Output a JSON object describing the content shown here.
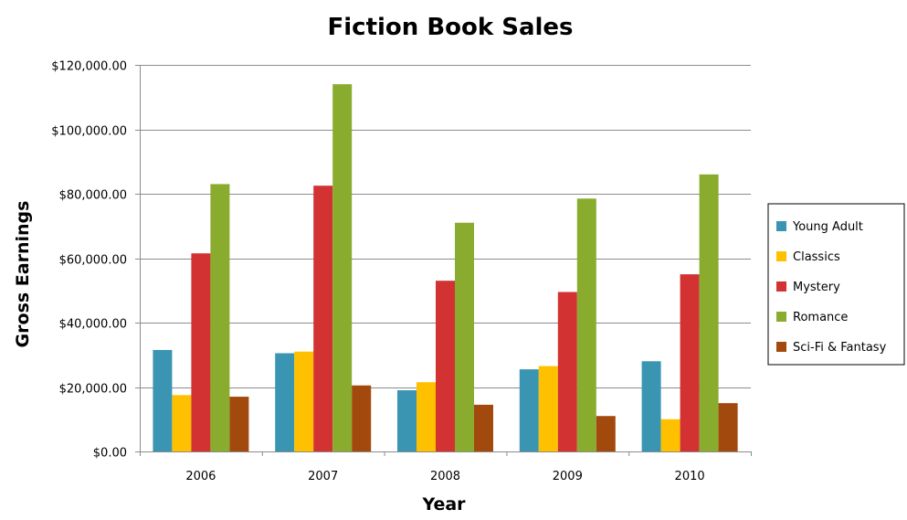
{
  "chart_data": {
    "type": "bar",
    "title": "Fiction Book Sales",
    "xlabel": "Year",
    "ylabel": "Gross Earnings",
    "categories": [
      "2006",
      "2007",
      "2008",
      "2009",
      "2010"
    ],
    "ylim": [
      0,
      120000
    ],
    "yticks": [
      0,
      20000,
      40000,
      60000,
      80000,
      100000,
      120000
    ],
    "ytick_labels": [
      "$0.00",
      "$20,000.00",
      "$40,000.00",
      "$60,000.00",
      "$80,000.00",
      "$100,000.00",
      "$120,000.00"
    ],
    "grid": true,
    "legend_position": "right",
    "series": [
      {
        "name": "Young Adult",
        "color": "#3a95b2",
        "values": [
          31500,
          30500,
          19000,
          25500,
          28000
        ]
      },
      {
        "name": "Classics",
        "color": "#ffc000",
        "values": [
          17500,
          31000,
          21500,
          26500,
          10000
        ]
      },
      {
        "name": "Mystery",
        "color": "#d23232",
        "values": [
          61500,
          82500,
          53000,
          49500,
          55000
        ]
      },
      {
        "name": "Romance",
        "color": "#89ac2e",
        "values": [
          83000,
          114000,
          71000,
          78500,
          86000
        ]
      },
      {
        "name": "Sci-Fi & Fantasy",
        "color": "#a24a0e",
        "values": [
          17000,
          20500,
          14500,
          11000,
          15000
        ]
      }
    ]
  }
}
